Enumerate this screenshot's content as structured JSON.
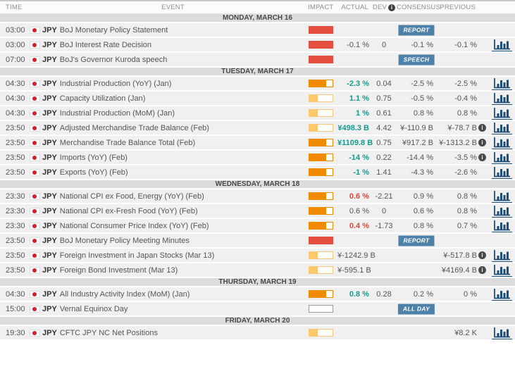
{
  "columns": {
    "time": "TIME",
    "event": "EVENT",
    "impact": "IMPACT",
    "actual": "ACTUAL",
    "dev": "DEV",
    "consensus": "CONSENSUS",
    "previous": "PREVIOUS"
  },
  "icons": {
    "dev_info": "info-icon",
    "previous_info": "info-icon",
    "chart": "bar-chart-icon",
    "flag": "japan-flag-icon"
  },
  "colors": {
    "impact_high": "#e5503e",
    "impact_medium": "#f08a00",
    "impact_low": "#ffc96b",
    "badge_blue": "#4e81a8",
    "actual_positive": "#149a8d",
    "actual_negative": "#e2453c",
    "flag_red": "#d21e2b",
    "chart_icon": "#1f4e79"
  },
  "sections": [
    {
      "label": "MONDAY, MARCH 16",
      "events": [
        {
          "time": "03:00",
          "currency": "JPY",
          "name": "BoJ Monetary Policy Statement",
          "impact": "high",
          "actual": "",
          "actual_tone": "neutral",
          "dev": "",
          "consensus": "",
          "previous": "",
          "previous_info": false,
          "badge": "REPORT",
          "chart": false
        },
        {
          "time": "03:00",
          "currency": "JPY",
          "name": "BoJ Interest Rate Decision",
          "impact": "high",
          "actual": "-0.1 %",
          "actual_tone": "neutral",
          "dev": "0",
          "consensus": "-0.1 %",
          "previous": "-0.1 %",
          "previous_info": false,
          "badge": "",
          "chart": true
        },
        {
          "time": "07:00",
          "currency": "JPY",
          "name": "BoJ's Governor Kuroda speech",
          "impact": "high",
          "actual": "",
          "actual_tone": "neutral",
          "dev": "",
          "consensus": "",
          "previous": "",
          "previous_info": false,
          "badge": "SPEECH",
          "chart": false
        }
      ]
    },
    {
      "label": "TUESDAY, MARCH 17",
      "events": [
        {
          "time": "04:30",
          "currency": "JPY",
          "name": "Industrial Production (YoY) (Jan)",
          "impact": "medium",
          "actual": "-2.3 %",
          "actual_tone": "positive",
          "dev": "0.04",
          "consensus": "-2.5 %",
          "previous": "-2.5 %",
          "previous_info": false,
          "badge": "",
          "chart": true
        },
        {
          "time": "04:30",
          "currency": "JPY",
          "name": "Capacity Utilization (Jan)",
          "impact": "low",
          "actual": "1.1 %",
          "actual_tone": "positive",
          "dev": "0.75",
          "consensus": "-0.5 %",
          "previous": "-0.4 %",
          "previous_info": false,
          "badge": "",
          "chart": true
        },
        {
          "time": "04:30",
          "currency": "JPY",
          "name": "Industrial Production (MoM) (Jan)",
          "impact": "low",
          "actual": "1 %",
          "actual_tone": "positive",
          "dev": "0.61",
          "consensus": "0.8 %",
          "previous": "0.8 %",
          "previous_info": false,
          "badge": "",
          "chart": true
        },
        {
          "time": "23:50",
          "currency": "JPY",
          "name": "Adjusted Merchandise Trade Balance (Feb)",
          "impact": "low",
          "actual": "¥498.3 B",
          "actual_tone": "positive",
          "dev": "4.42",
          "consensus": "¥-110.9 B",
          "previous": "¥-78.7 B",
          "previous_info": true,
          "badge": "",
          "chart": true
        },
        {
          "time": "23:50",
          "currency": "JPY",
          "name": "Merchandise Trade Balance Total (Feb)",
          "impact": "medium",
          "actual": "¥1109.8 B",
          "actual_tone": "positive",
          "dev": "0.75",
          "consensus": "¥917.2 B",
          "previous": "¥-1313.2 B",
          "previous_info": true,
          "badge": "",
          "chart": true
        },
        {
          "time": "23:50",
          "currency": "JPY",
          "name": "Imports (YoY) (Feb)",
          "impact": "medium",
          "actual": "-14 %",
          "actual_tone": "positive",
          "dev": "0.22",
          "consensus": "-14.4 %",
          "previous": "-3.5 %",
          "previous_info": true,
          "badge": "",
          "chart": true
        },
        {
          "time": "23:50",
          "currency": "JPY",
          "name": "Exports (YoY) (Feb)",
          "impact": "medium",
          "actual": "-1 %",
          "actual_tone": "positive",
          "dev": "1.41",
          "consensus": "-4.3 %",
          "previous": "-2.6 %",
          "previous_info": false,
          "badge": "",
          "chart": true
        }
      ]
    },
    {
      "label": "WEDNESDAY, MARCH 18",
      "events": [
        {
          "time": "23:30",
          "currency": "JPY",
          "name": "National CPI ex Food, Energy (YoY) (Feb)",
          "impact": "medium",
          "actual": "0.6 %",
          "actual_tone": "negative",
          "dev": "-2.21",
          "consensus": "0.9 %",
          "previous": "0.8 %",
          "previous_info": false,
          "badge": "",
          "chart": true
        },
        {
          "time": "23:30",
          "currency": "JPY",
          "name": "National CPI ex-Fresh Food (YoY) (Feb)",
          "impact": "medium",
          "actual": "0.6 %",
          "actual_tone": "neutral",
          "dev": "0",
          "consensus": "0.6 %",
          "previous": "0.8 %",
          "previous_info": false,
          "badge": "",
          "chart": true
        },
        {
          "time": "23:30",
          "currency": "JPY",
          "name": "National Consumer Price Index (YoY) (Feb)",
          "impact": "medium",
          "actual": "0.4 %",
          "actual_tone": "negative",
          "dev": "-1.73",
          "consensus": "0.8 %",
          "previous": "0.7 %",
          "previous_info": false,
          "badge": "",
          "chart": true
        },
        {
          "time": "23:50",
          "currency": "JPY",
          "name": "BoJ Monetary Policy Meeting Minutes",
          "impact": "high",
          "actual": "",
          "actual_tone": "neutral",
          "dev": "",
          "consensus": "",
          "previous": "",
          "previous_info": false,
          "badge": "REPORT",
          "chart": false
        },
        {
          "time": "23:50",
          "currency": "JPY",
          "name": "Foreign Investment in Japan Stocks (Mar 13)",
          "impact": "low",
          "actual": "¥-1242.9 B",
          "actual_tone": "neutral",
          "dev": "",
          "consensus": "",
          "previous": "¥-517.8 B",
          "previous_info": true,
          "badge": "",
          "chart": true
        },
        {
          "time": "23:50",
          "currency": "JPY",
          "name": "Foreign Bond Investment (Mar 13)",
          "impact": "low",
          "actual": "¥-595.1 B",
          "actual_tone": "neutral",
          "dev": "",
          "consensus": "",
          "previous": "¥4169.4 B",
          "previous_info": true,
          "badge": "",
          "chart": true
        }
      ]
    },
    {
      "label": "THURSDAY, MARCH 19",
      "events": [
        {
          "time": "04:30",
          "currency": "JPY",
          "name": "All Industry Activity Index (MoM) (Jan)",
          "impact": "medium",
          "actual": "0.8 %",
          "actual_tone": "positive",
          "dev": "0.28",
          "consensus": "0.2 %",
          "previous": "0 %",
          "previous_info": false,
          "badge": "",
          "chart": true
        },
        {
          "time": "15:00",
          "currency": "JPY",
          "name": "Vernal Equinox Day",
          "impact": "none",
          "actual": "",
          "actual_tone": "neutral",
          "dev": "",
          "consensus": "",
          "previous": "",
          "previous_info": false,
          "badge": "ALL DAY",
          "chart": false
        }
      ]
    },
    {
      "label": "FRIDAY, MARCH 20",
      "events": [
        {
          "time": "19:30",
          "currency": "JPY",
          "name": "CFTC JPY NC Net Positions",
          "impact": "low",
          "actual": "",
          "actual_tone": "neutral",
          "dev": "",
          "consensus": "",
          "previous": "¥8.2 K",
          "previous_info": false,
          "badge": "",
          "chart": true
        }
      ]
    }
  ]
}
